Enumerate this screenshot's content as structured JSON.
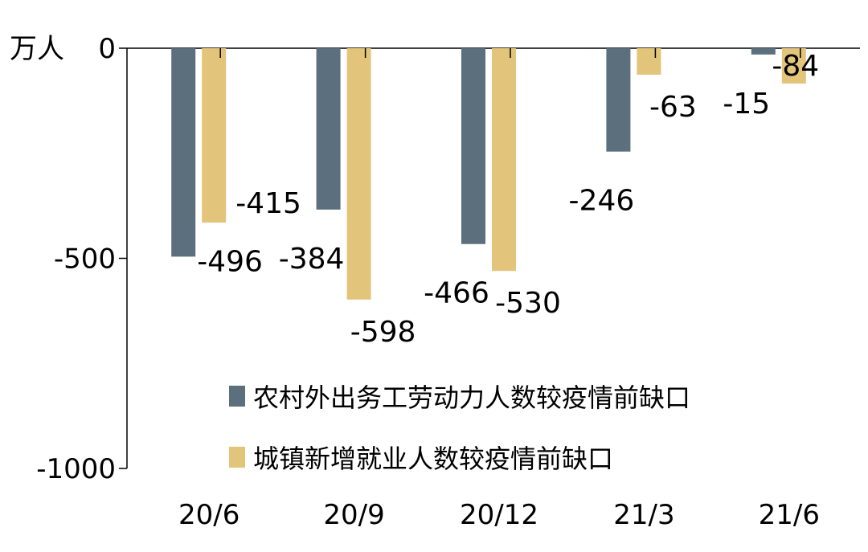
{
  "chart_data": {
    "type": "bar",
    "ylabel": "万人",
    "ylim": [
      -1000,
      0
    ],
    "yticks": [
      0,
      -500,
      -1000
    ],
    "categories": [
      "20/6",
      "20/9",
      "20/12",
      "21/3",
      "21/6"
    ],
    "series": [
      {
        "name": "农村外出务工劳动力人数较疫情前缺口",
        "color": "#5b6f7d",
        "values": [
          -496,
          -384,
          -466,
          -246,
          -15
        ]
      },
      {
        "name": "城镇新增就业人数较疫情前缺口",
        "color": "#e2c47a",
        "values": [
          -415,
          -598,
          -530,
          -63,
          -84
        ]
      }
    ],
    "legend_position": "bottom-right",
    "grid": false
  }
}
